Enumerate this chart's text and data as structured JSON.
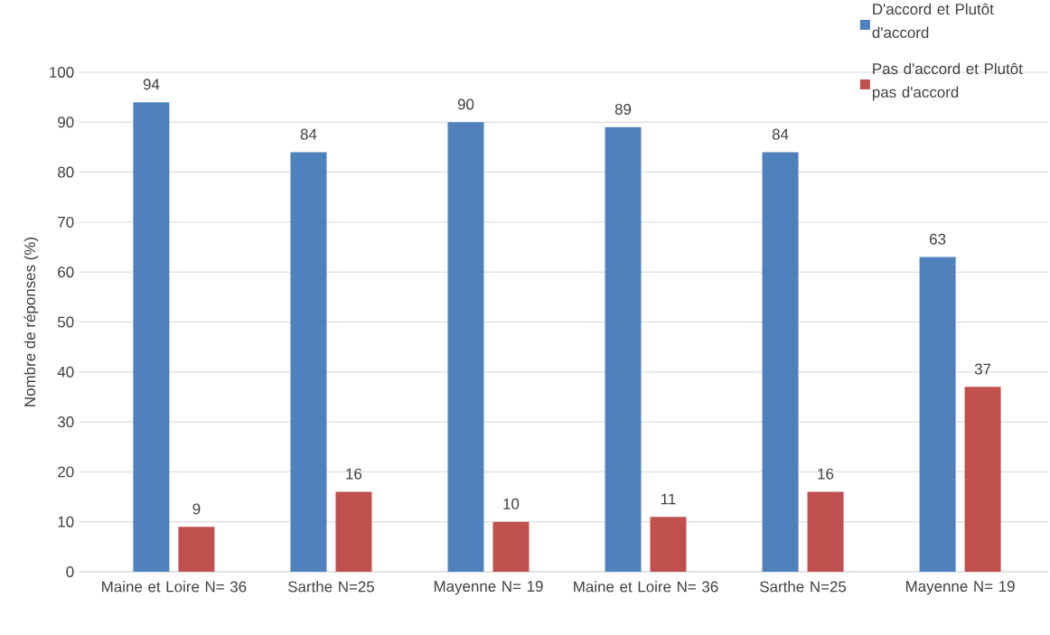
{
  "chart_data": {
    "type": "bar",
    "ylabel": "Nombre de réponses (%)",
    "categories": [
      "Maine et Loire N= 36",
      "Sarthe N=25",
      "Mayenne N= 19",
      "Maine et Loire N= 36",
      "Sarthe N=25",
      "Mayenne N= 19"
    ],
    "series": [
      {
        "name": "D'accord et Plutôt d'accord",
        "color": "#4f81bd",
        "values": [
          94,
          84,
          90,
          89,
          84,
          63
        ]
      },
      {
        "name": "Pas d'accord et Plutôt pas d'accord",
        "color": "#c0504d",
        "values": [
          9,
          16,
          10,
          11,
          16,
          37
        ]
      }
    ],
    "ylim": [
      0,
      100
    ],
    "yticks": [
      0,
      10,
      20,
      30,
      40,
      50,
      60,
      70,
      80,
      90,
      100
    ],
    "grid": "y",
    "legend": "top right",
    "data_labels": true
  }
}
